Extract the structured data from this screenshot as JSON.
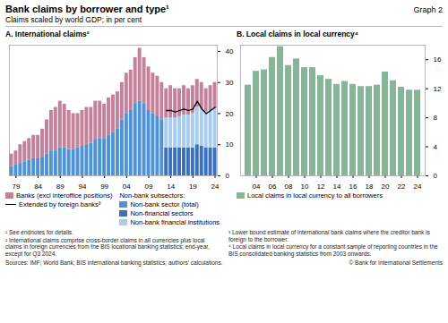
{
  "title": "Bank claims by borrower and type¹",
  "graph_label": "Graph 2",
  "subtitle": "Claims scaled by world GDP; in per cent",
  "chart_data": [
    {
      "type": "bar",
      "title": "A. International claims²",
      "stacked": true,
      "legend_heading": "Non-bank subsectors:",
      "categories": [
        null,
        "79",
        null,
        null,
        null,
        null,
        "84",
        null,
        null,
        null,
        null,
        "89",
        null,
        null,
        null,
        null,
        "94",
        null,
        null,
        null,
        null,
        "99",
        null,
        null,
        null,
        null,
        "04",
        null,
        null,
        null,
        null,
        "09",
        null,
        null,
        null,
        null,
        "14",
        null,
        null,
        null,
        null,
        "19",
        null,
        null,
        null,
        null,
        "24"
      ],
      "ylim": [
        0,
        42
      ],
      "yticks": [
        0,
        10,
        20,
        30,
        40
      ],
      "series": [
        {
          "name": "Banks (excl interoffice positions)",
          "type": "bar",
          "color": "#c4819b",
          "values": [
            4,
            4.5,
            6,
            6.5,
            7,
            7.5,
            7.5,
            9,
            11,
            13,
            14,
            15,
            14,
            12.5,
            11.5,
            11,
            11.5,
            12,
            11.5,
            12.5,
            12,
            11,
            12,
            12,
            12,
            12,
            13,
            13,
            15,
            17,
            15,
            14,
            13,
            13,
            12,
            9.5,
            10.5,
            9.5,
            9,
            9.5,
            8.5,
            9,
            9,
            8.5,
            7.5,
            8,
            8.5
          ]
        },
        {
          "name": "Extended by foreign banks³",
          "type": "line",
          "color": "#000000",
          "values": [
            null,
            null,
            null,
            null,
            null,
            null,
            null,
            null,
            null,
            null,
            null,
            null,
            null,
            null,
            null,
            null,
            null,
            null,
            null,
            null,
            null,
            null,
            null,
            null,
            null,
            null,
            null,
            null,
            null,
            null,
            null,
            null,
            null,
            null,
            null,
            21,
            21,
            20.5,
            21,
            21.5,
            21,
            21.5,
            24,
            21.5,
            20,
            21,
            22
          ]
        },
        {
          "name": "Non-bank sector (total)",
          "type": "bar",
          "color": "#4d93d6",
          "values": [
            3,
            3.5,
            4,
            4.5,
            5,
            5.5,
            5.5,
            6,
            7,
            8,
            8,
            9,
            9,
            8.5,
            8.5,
            9,
            9.5,
            10,
            10.5,
            11.5,
            12,
            12,
            13,
            14,
            15,
            18,
            20,
            21,
            23,
            24,
            23,
            21,
            20,
            19,
            18,
            null,
            null,
            null,
            null,
            null,
            null,
            null,
            null,
            null,
            null,
            null,
            null
          ]
        },
        {
          "name": "Non-financial sectors",
          "type": "bar",
          "color": "#3b6fbf",
          "values": [
            null,
            null,
            null,
            null,
            null,
            null,
            null,
            null,
            null,
            null,
            null,
            null,
            null,
            null,
            null,
            null,
            null,
            null,
            null,
            null,
            null,
            null,
            null,
            null,
            null,
            null,
            null,
            null,
            null,
            null,
            null,
            null,
            null,
            null,
            null,
            9,
            9,
            9,
            9,
            9,
            9,
            9,
            10,
            9.5,
            9,
            9,
            9
          ]
        },
        {
          "name": "Non-bank financial institutions",
          "type": "bar",
          "color": "#a8cdee",
          "values": [
            null,
            null,
            null,
            null,
            null,
            null,
            null,
            null,
            null,
            null,
            null,
            null,
            null,
            null,
            null,
            null,
            null,
            null,
            null,
            null,
            null,
            null,
            null,
            null,
            null,
            null,
            null,
            null,
            null,
            null,
            null,
            null,
            null,
            null,
            null,
            9.5,
            9.5,
            9.5,
            10,
            10.5,
            10.5,
            11,
            12,
            12,
            11.5,
            12,
            12.5
          ]
        }
      ]
    },
    {
      "type": "bar",
      "title": "B. Local claims in local currency⁴",
      "categories": [
        null,
        "04",
        null,
        "06",
        null,
        "08",
        null,
        "10",
        null,
        "12",
        null,
        "14",
        null,
        "16",
        null,
        "18",
        null,
        "20",
        null,
        "22",
        null,
        "24"
      ],
      "ylim": [
        0,
        18
      ],
      "yticks": [
        0,
        4,
        8,
        12,
        16
      ],
      "series": [
        {
          "name": "Local claims in local currency to all borrowers",
          "type": "bar",
          "color": "#86b597",
          "values": [
            12.5,
            14.4,
            14.6,
            16.3,
            17.8,
            15.2,
            16.1,
            14.9,
            14.9,
            13.8,
            13.3,
            12.6,
            13.0,
            12.6,
            12.3,
            12.3,
            12.5,
            14.3,
            13.1,
            12.2,
            11.8,
            11.8
          ]
        }
      ]
    }
  ],
  "footnotes": [
    "¹ See endnotes for details.",
    "² International claims comprise cross-border claims in all currencies plus local claims in foreign currencies from the BIS locational banking statistics; end-year, except for Q3 2024.",
    "³ Lower bound estimate of international bank claims where the creditor bank is foreign to the borrower.",
    "⁴ Local claims in local currency for a constant sample of reporting countries in the BIS consolidated banking statistics from 2003 onwards."
  ],
  "sources": "Sources: IMF; World Bank; BIS international banking statistics; authors' calculations.",
  "copyright": "© Bank for International Settlements"
}
